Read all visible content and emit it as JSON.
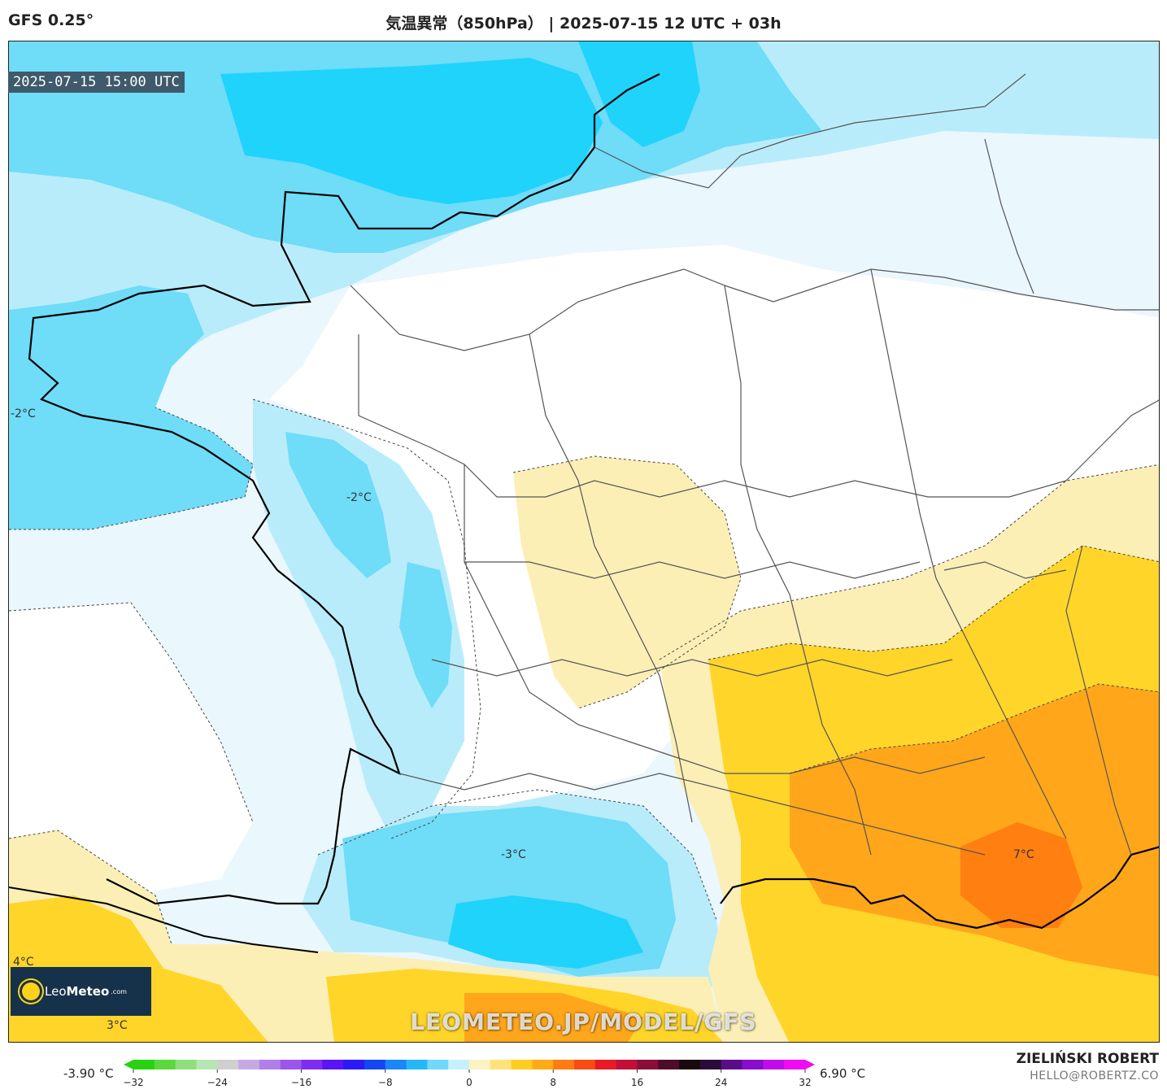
{
  "header": {
    "model": "GFS 0.25°",
    "title": "気温異常（850hPa） | 2025-07-15 12 UTC + 03h"
  },
  "map": {
    "valid_time": "2025-07-15 15:00 UTC",
    "contour_labels": [
      {
        "text": "-2°C",
        "region": "west-atlantic"
      },
      {
        "text": "-2°C",
        "region": "vendee"
      },
      {
        "text": "-3°C",
        "region": "pyrenees-south"
      },
      {
        "text": "7°C",
        "region": "provence"
      },
      {
        "text": "4°C",
        "region": "north-spain-west"
      },
      {
        "text": "3°C",
        "region": "north-spain-south"
      }
    ],
    "colors": {
      "cold_light": "#b9ecfb",
      "cold_mid": "#6fdcf8",
      "cold_strong": "#1fd3fb",
      "neutral": "#ffffff",
      "warm_light": "#fbefb6",
      "warm_mid": "#ffd52a",
      "warm_strong": "#ffa61a",
      "warm_peak": "#ff7f10"
    }
  },
  "logo": {
    "brand_prefix": "Leo",
    "brand_bold": "Meteo",
    "brand_suffix": ".com"
  },
  "watermark": "LEOMETEO.JP/MODEL/GFS",
  "legend": {
    "min_value": "-3.90 °C",
    "max_value": "6.90 °C",
    "ticks": [
      "−32",
      "−24",
      "−16",
      "−8",
      "0",
      "8",
      "16",
      "24",
      "32"
    ],
    "range": [
      -32,
      32
    ],
    "colors": [
      "#27d30f",
      "#59d93b",
      "#8de07a",
      "#b8e6b2",
      "#cfcfcf",
      "#c6a9e3",
      "#b07fe9",
      "#9c56ee",
      "#7f2cf0",
      "#5a14f6",
      "#2a1af7",
      "#1446f5",
      "#1a86f7",
      "#26b7fa",
      "#6fd8fb",
      "#c6f0fc",
      "#fbf3c2",
      "#ffe37a",
      "#ffcc21",
      "#ffab16",
      "#ff7c12",
      "#f84c12",
      "#e81a25",
      "#c20f38",
      "#8a0f38",
      "#4e0c28",
      "#1a0a10",
      "#2a0b3a",
      "#5a0c8a",
      "#8a0ccc",
      "#c00ce8",
      "#f00cf0"
    ]
  },
  "credits": {
    "author": "ZIELIŃSKI ROBERT",
    "email": "HELLO@ROBERTZ.CO"
  }
}
